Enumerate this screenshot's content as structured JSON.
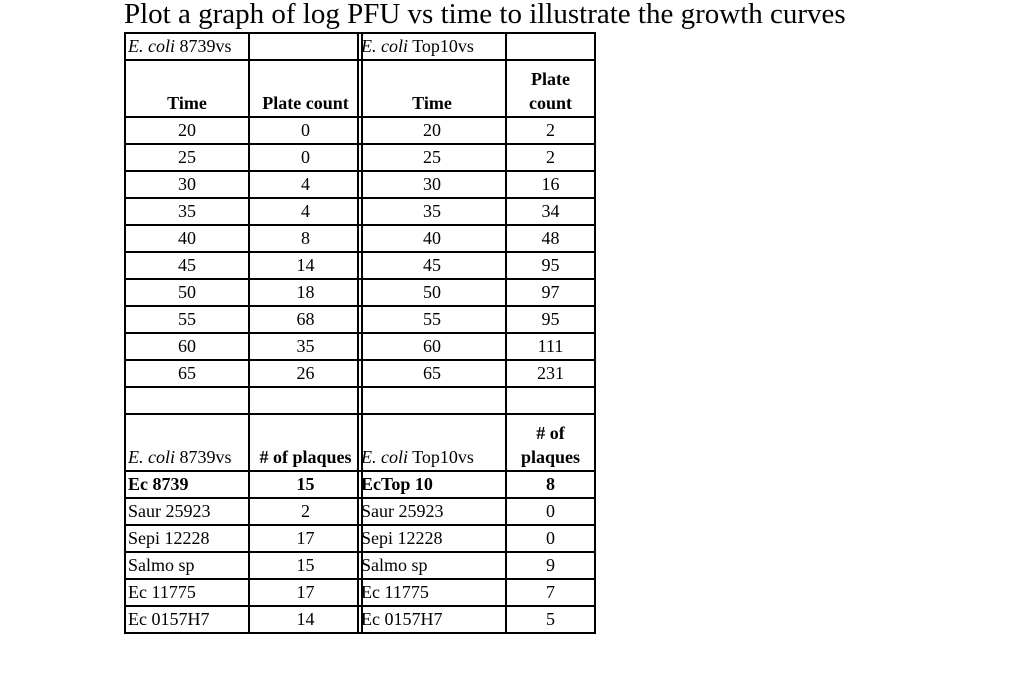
{
  "title": "Plot a graph of log PFU vs time to illustrate the growth curves",
  "left": {
    "header": {
      "species": "E. coli",
      "strain": "8739vs"
    },
    "col_time": "Time",
    "col_count": "Plate count",
    "rows": [
      [
        "20",
        "0"
      ],
      [
        "25",
        "0"
      ],
      [
        "30",
        "4"
      ],
      [
        "35",
        "4"
      ],
      [
        "40",
        "8"
      ],
      [
        "45",
        "14"
      ],
      [
        "50",
        "18"
      ],
      [
        "55",
        "68"
      ],
      [
        "60",
        "35"
      ],
      [
        "65",
        "26"
      ]
    ],
    "plaques_header": {
      "species": "E. coli",
      "strain": "8739vs",
      "label": "# of plaques"
    },
    "plaques": [
      [
        "Ec 8739",
        "15"
      ],
      [
        "Saur 25923",
        "2"
      ],
      [
        "Sepi 12228",
        "17"
      ],
      [
        "Salmo sp",
        "15"
      ],
      [
        "Ec 11775",
        "17"
      ],
      [
        "Ec 0157H7",
        "14"
      ]
    ]
  },
  "right": {
    "header": {
      "species": "E. coli",
      "strain": "Top10vs"
    },
    "col_time": "Time",
    "col_count_1": "Plate",
    "col_count_2": "count",
    "rows": [
      [
        "20",
        "2"
      ],
      [
        "25",
        "2"
      ],
      [
        "30",
        "16"
      ],
      [
        "35",
        "34"
      ],
      [
        "40",
        "48"
      ],
      [
        "45",
        "95"
      ],
      [
        "50",
        "97"
      ],
      [
        "55",
        "95"
      ],
      [
        "60",
        "111"
      ],
      [
        "65",
        "231"
      ]
    ],
    "plaques_header": {
      "species": "E. coli",
      "strain": "Top10vs",
      "label_1": "# of",
      "label_2": "plaques"
    },
    "plaques": [
      [
        "EcTop 10",
        "8"
      ],
      [
        "Saur 25923",
        "0"
      ],
      [
        "Sepi 12228",
        "0"
      ],
      [
        "Salmo sp",
        "9"
      ],
      [
        "Ec 11775",
        "7"
      ],
      [
        "Ec 0157H7",
        "5"
      ]
    ]
  }
}
